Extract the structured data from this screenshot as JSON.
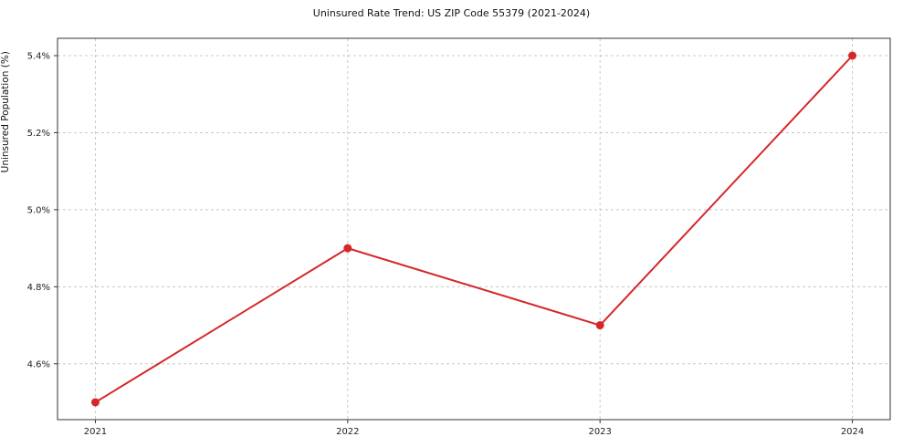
{
  "chart_data": {
    "type": "line",
    "title": "Uninsured Rate Trend: US ZIP Code 55379 (2021-2024)",
    "xlabel": "",
    "ylabel": "Uninsured Population (%)",
    "x": [
      2021,
      2022,
      2023,
      2024
    ],
    "x_tick_labels": [
      "2021",
      "2022",
      "2023",
      "2024"
    ],
    "values": [
      4.5,
      4.9,
      4.7,
      5.4
    ],
    "y_ticks": [
      4.6,
      4.8,
      5.0,
      5.2,
      5.4
    ],
    "y_tick_labels": [
      "4.6%",
      "4.8%",
      "5.0%",
      "5.2%",
      "5.4%"
    ],
    "ylim": [
      4.455,
      5.445
    ],
    "grid": true,
    "legend_position": "none",
    "line_color": "#d62728",
    "marker": "circle",
    "grid_color": "#c8c8c8",
    "spine_color": "#333333"
  }
}
